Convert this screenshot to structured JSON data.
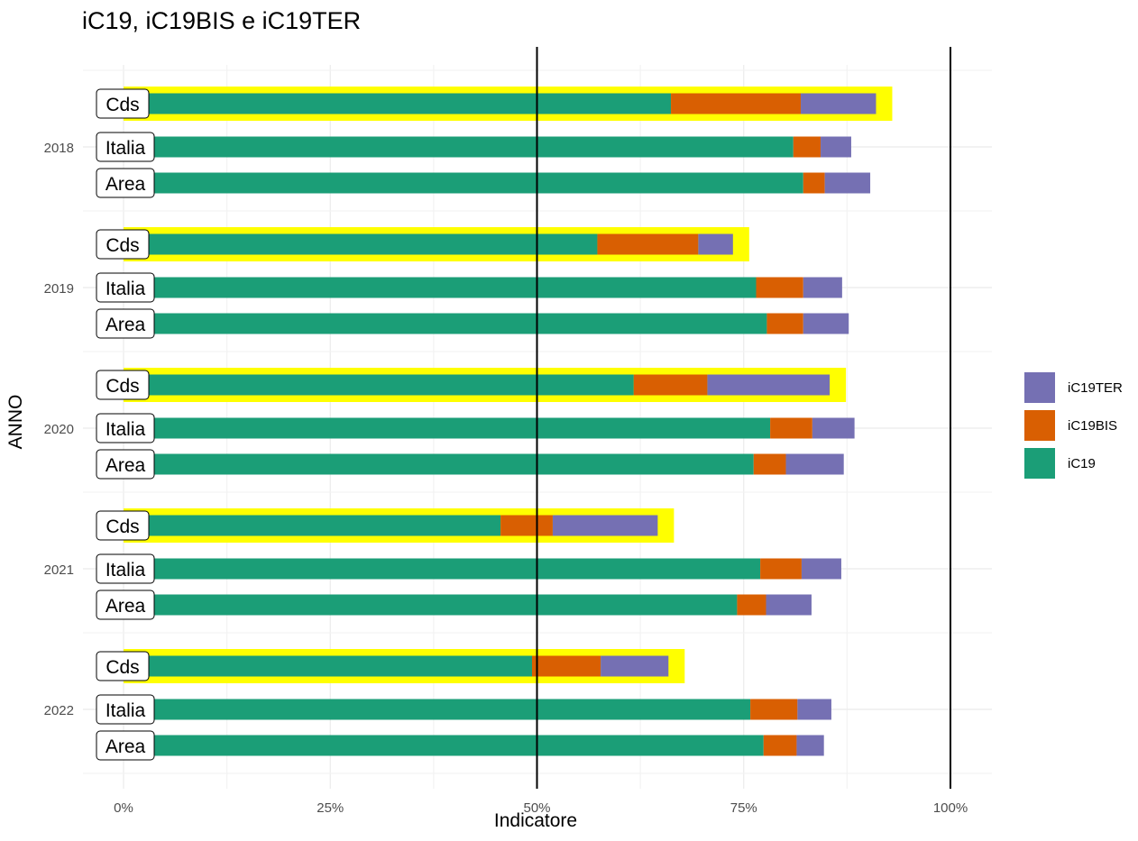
{
  "chart_data": {
    "type": "bar",
    "orientation": "horizontal",
    "stacked": true,
    "title": "iC19, iC19BIS e iC19TER",
    "xlabel": "Indicatore",
    "ylabel": "ANNO",
    "xlim": [
      0,
      1
    ],
    "x_ticks": [
      "0%",
      "25%",
      "50%",
      "75%",
      "100%"
    ],
    "reference_lines": [
      0.5,
      1.0
    ],
    "grid": true,
    "legend_position": "right",
    "groups": [
      "2018",
      "2019",
      "2020",
      "2021",
      "2022"
    ],
    "subgroups": [
      "Cds",
      "Italia",
      "Area"
    ],
    "highlight": {
      "subgroup": "Cds",
      "color": "#FFFF00"
    },
    "series": [
      {
        "name": "iC19",
        "color": "#1B9E77",
        "values": [
          [
            0.662,
            0.81,
            0.822
          ],
          [
            0.573,
            0.765,
            0.778
          ],
          [
            0.617,
            0.782,
            0.762
          ],
          [
            0.456,
            0.77,
            0.742
          ],
          [
            0.494,
            0.758,
            0.774
          ]
        ]
      },
      {
        "name": "iC19BIS",
        "color": "#D95F02",
        "values": [
          [
            0.157,
            0.033,
            0.026
          ],
          [
            0.122,
            0.057,
            0.044
          ],
          [
            0.089,
            0.051,
            0.039
          ],
          [
            0.063,
            0.05,
            0.035
          ],
          [
            0.083,
            0.057,
            0.04
          ]
        ]
      },
      {
        "name": "iC19TER",
        "color": "#7570B3",
        "values": [
          [
            0.091,
            0.037,
            0.055
          ],
          [
            0.042,
            0.047,
            0.055
          ],
          [
            0.148,
            0.051,
            0.07
          ],
          [
            0.127,
            0.048,
            0.055
          ],
          [
            0.082,
            0.041,
            0.033
          ]
        ]
      }
    ]
  },
  "legend": [
    {
      "label": "iC19TER",
      "color": "#7570B3"
    },
    {
      "label": "iC19BIS",
      "color": "#D95F02"
    },
    {
      "label": "iC19",
      "color": "#1B9E77"
    }
  ]
}
